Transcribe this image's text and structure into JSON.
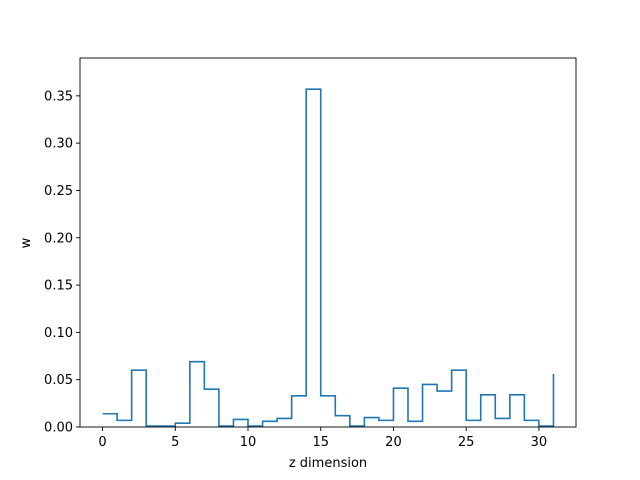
{
  "chart_data": {
    "type": "line",
    "style": "step-post",
    "title": "",
    "xlabel": "z dimension",
    "ylabel": "w",
    "xlim": [
      -1.55,
      32.55
    ],
    "ylim": [
      0.0,
      0.39
    ],
    "x_ticks": [
      0,
      5,
      10,
      15,
      20,
      25,
      30
    ],
    "y_ticks": [
      0.0,
      0.05,
      0.1,
      0.15,
      0.2,
      0.25,
      0.3,
      0.35
    ],
    "y_tick_labels": [
      "0.00",
      "0.05",
      "0.10",
      "0.15",
      "0.20",
      "0.25",
      "0.30",
      "0.35"
    ],
    "grid": false,
    "line_color": "#1f77b4",
    "series": [
      {
        "x": [
          0,
          1,
          2,
          3,
          4,
          5,
          6,
          7,
          8,
          9,
          10,
          11,
          12,
          13,
          14,
          15,
          16,
          17,
          18,
          19,
          20,
          21,
          22,
          23,
          24,
          25,
          26,
          27,
          28,
          29,
          30,
          31
        ],
        "values": [
          0.014,
          0.007,
          0.06,
          0.001,
          0.001,
          0.004,
          0.069,
          0.04,
          0.001,
          0.008,
          0.001,
          0.006,
          0.009,
          0.033,
          0.357,
          0.033,
          0.012,
          0.001,
          0.01,
          0.007,
          0.041,
          0.006,
          0.045,
          0.038,
          0.06,
          0.007,
          0.034,
          0.009,
          0.034,
          0.007,
          0.001,
          0.056
        ]
      }
    ]
  }
}
